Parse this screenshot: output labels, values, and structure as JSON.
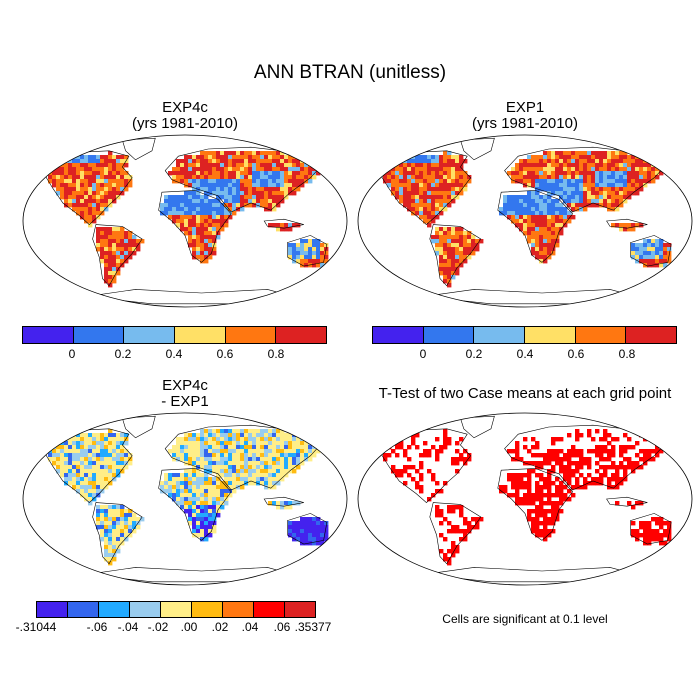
{
  "figure": {
    "main_title": "ANN BTRAN (unitless)",
    "panel_a": {
      "line1": "EXP4c",
      "line2": "(yrs 1981-2010)"
    },
    "panel_b": {
      "line1": "EXP1",
      "line2": "(yrs 1981-2010)"
    },
    "panel_c": {
      "line1": "EXP4c",
      "line2": "- EXP1"
    },
    "panel_d": {
      "line1": "T-Test of two Case means at each grid point"
    },
    "significance_note": "Cells are significant at 0.1 level"
  },
  "colors": {
    "ocean": "#ffffff",
    "coast": "#000000",
    "significant": "#ff0000",
    "abs_scale": [
      "#4422ee",
      "#3377ee",
      "#77bbee",
      "#ffe066",
      "#ff7711",
      "#dd2222"
    ],
    "diff_scale": [
      "#4422ee",
      "#3366ee",
      "#22aaff",
      "#99ccee",
      "#ffee88",
      "#ffbb11",
      "#ff7711",
      "#ff0000",
      "#dd2222"
    ]
  },
  "colorbars": {
    "abs_left_labels": [
      "0",
      "0.2",
      "0.4",
      "0.6",
      "0.8"
    ],
    "abs_right_labels": [
      "0",
      "0.2",
      "0.4",
      "0.6",
      "0.8"
    ],
    "diff_labels": [
      "-.31044",
      "-.06",
      "-.04",
      "-.02",
      ".00",
      ".02",
      ".04",
      ".06",
      ".35377"
    ]
  },
  "chart_data": [
    {
      "type": "heatmap",
      "title": "EXP4c",
      "subtitle": "(yrs 1981-2010)",
      "colorbar_levels": [
        0,
        0.2,
        0.4,
        0.6,
        0.8
      ]
    },
    {
      "type": "heatmap",
      "title": "EXP1",
      "subtitle": "(yrs 1981-2010)",
      "colorbar_levels": [
        0,
        0.2,
        0.4,
        0.6,
        0.8
      ]
    },
    {
      "type": "heatmap",
      "title": "EXP4c",
      "subtitle": "- EXP1",
      "colorbar_levels": [
        -0.31044,
        -0.06,
        -0.04,
        -0.02,
        0.0,
        0.02,
        0.04,
        0.06,
        0.35377
      ]
    },
    {
      "type": "heatmap",
      "title": "T-Test of two Case means at each grid point",
      "note": "Cells are significant at 0.1 level"
    }
  ]
}
